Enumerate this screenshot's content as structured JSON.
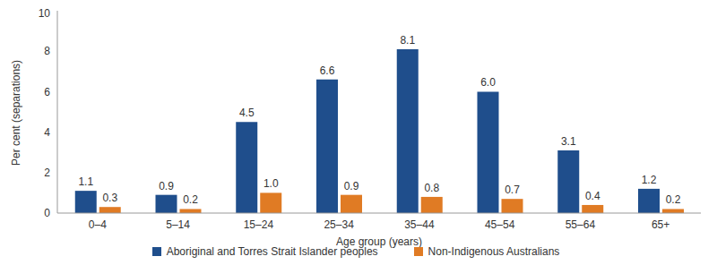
{
  "chart_data": {
    "type": "bar",
    "categories": [
      "0–4",
      "5–14",
      "15–24",
      "25–34",
      "35–44",
      "45–54",
      "55–64",
      "65+"
    ],
    "series": [
      {
        "name": "Aboriginal and Torres Strait Islander peoples",
        "color": "#1f4e8c",
        "values": [
          1.1,
          0.9,
          4.5,
          6.6,
          8.1,
          6.0,
          3.1,
          1.2
        ],
        "value_labels": [
          "1.1",
          "0.9",
          "4.5",
          "6.6",
          "8.1",
          "6.0",
          "3.1",
          "1.2"
        ]
      },
      {
        "name": "Non-Indigenous Australians",
        "color": "#e07b24",
        "values": [
          0.3,
          0.2,
          1.0,
          0.9,
          0.8,
          0.7,
          0.4,
          0.2
        ],
        "value_labels": [
          "0.3",
          "0.2",
          "1.0",
          "0.9",
          "0.8",
          "0.7",
          "0.4",
          "0.2"
        ]
      }
    ],
    "x_label": "Age group (years)",
    "y_label": "Per cent (separations)",
    "ylim": [
      0,
      10
    ],
    "yticks": [
      0,
      2,
      4,
      6,
      8,
      10
    ],
    "grid": false,
    "data_labels": true,
    "legend": "bottom"
  }
}
